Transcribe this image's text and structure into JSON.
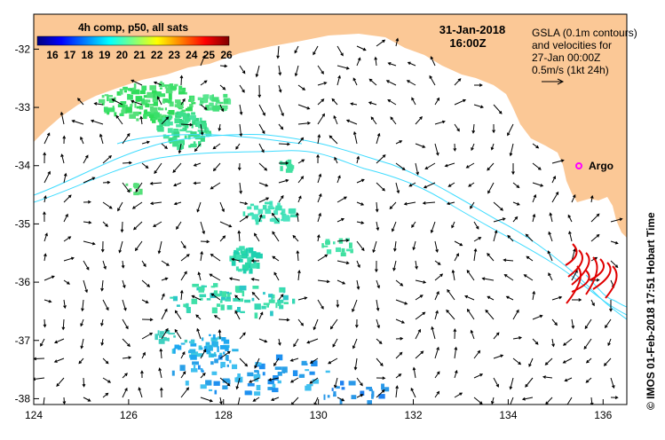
{
  "title": {
    "date": "31-Jan-2018",
    "time": "16:00Z"
  },
  "colorbar": {
    "label": "4h comp, p50, all sats",
    "ticks": [
      "16",
      "17",
      "18",
      "19",
      "20",
      "21",
      "22",
      "23",
      "24",
      "25",
      "26"
    ],
    "colors": [
      "#00007f",
      "#0000ff",
      "#007fff",
      "#00ffff",
      "#7fff7f",
      "#ffff00",
      "#ff7f00",
      "#ff0000",
      "#7f0000"
    ]
  },
  "legend": {
    "line1": "GSLA (0.1m contours)",
    "line2": "and velocities for",
    "line3": "27-Jan 00:00Z",
    "line4": "0.5m/s (1kt 24h)"
  },
  "argo": {
    "label": "Argo",
    "color": "#ff00ff"
  },
  "credit": "© IMOS 01-Feb-2018 17:51 Hobart Time",
  "axes": {
    "x_ticks": [
      "124",
      "126",
      "128",
      "130",
      "132",
      "134",
      "136"
    ],
    "y_ticks": [
      "-32",
      "-33",
      "-34",
      "-35",
      "-36",
      "-37",
      "-38"
    ],
    "xlim": [
      124,
      136.5
    ],
    "ylim": [
      -38.1,
      -31.4
    ]
  },
  "colors": {
    "land": "#fbc896",
    "contour": "#3fdcff",
    "drifter": "#e00000",
    "arrow": "#000000"
  }
}
